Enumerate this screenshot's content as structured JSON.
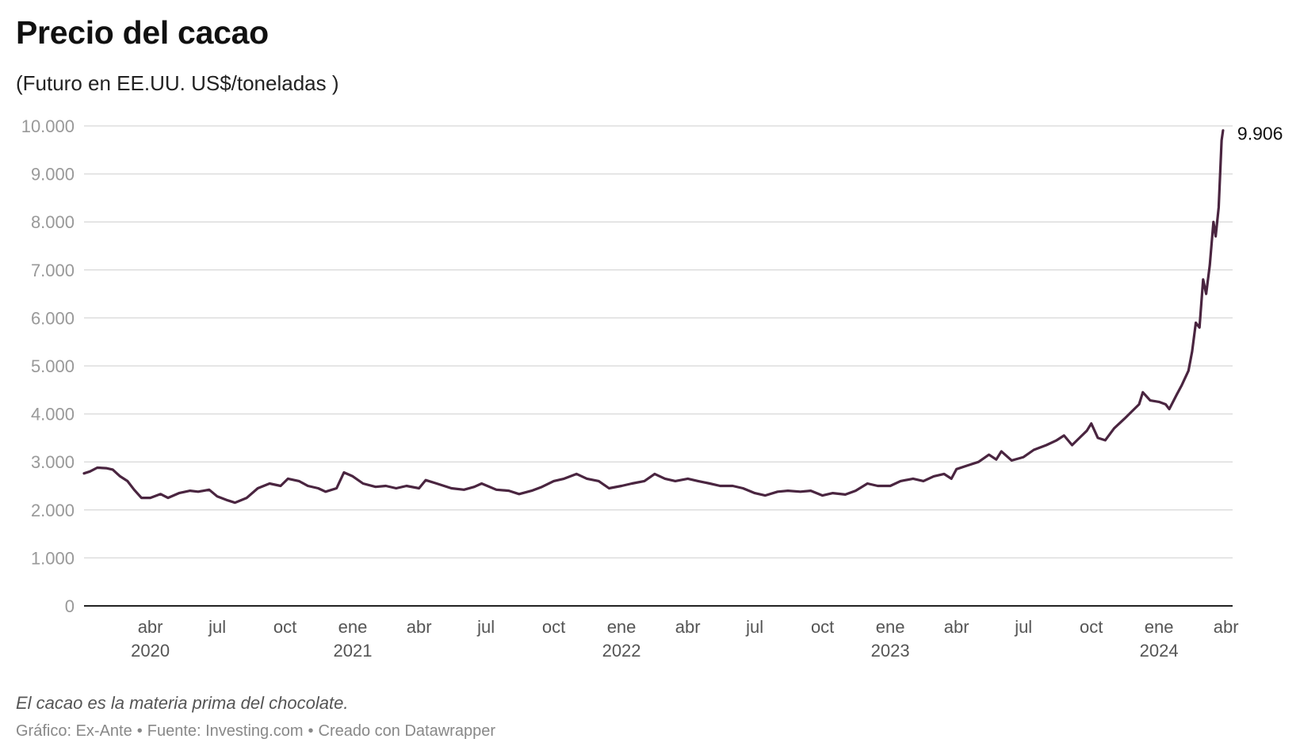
{
  "header": {
    "title": "Precio del cacao",
    "subtitle": "(Futuro en EE.UU. US$/toneladas )"
  },
  "footer": {
    "note": "El cacao es la materia prima del chocolate.",
    "credit": "Gráfico: Ex-Ante",
    "source": "Fuente: Investing.com",
    "tool": "Creado con Datawrapper"
  },
  "chart_data": {
    "type": "line",
    "title": "Precio del cacao",
    "subtitle": "(Futuro en EE.UU. US$/toneladas )",
    "xlabel": "",
    "ylabel": "",
    "ylim": [
      0,
      10000
    ],
    "xlim": [
      "2020-01-02",
      "2024-04-10"
    ],
    "grid": true,
    "line_color": "#4a2540",
    "y_ticks": [
      {
        "value": 0,
        "label": "0"
      },
      {
        "value": 1000,
        "label": "1.000"
      },
      {
        "value": 2000,
        "label": "2.000"
      },
      {
        "value": 3000,
        "label": "3.000"
      },
      {
        "value": 4000,
        "label": "4.000"
      },
      {
        "value": 5000,
        "label": "5.000"
      },
      {
        "value": 6000,
        "label": "6.000"
      },
      {
        "value": 7000,
        "label": "7.000"
      },
      {
        "value": 8000,
        "label": "8.000"
      },
      {
        "value": 9000,
        "label": "9.000"
      },
      {
        "value": 10000,
        "label": "10.000"
      }
    ],
    "x_ticks": [
      {
        "date": "2020-04-01",
        "label": "abr",
        "year": "2020"
      },
      {
        "date": "2020-07-01",
        "label": "jul",
        "year": ""
      },
      {
        "date": "2020-10-01",
        "label": "oct",
        "year": ""
      },
      {
        "date": "2021-01-01",
        "label": "ene",
        "year": "2021"
      },
      {
        "date": "2021-04-01",
        "label": "abr",
        "year": ""
      },
      {
        "date": "2021-07-01",
        "label": "jul",
        "year": ""
      },
      {
        "date": "2021-10-01",
        "label": "oct",
        "year": ""
      },
      {
        "date": "2022-01-01",
        "label": "ene",
        "year": "2022"
      },
      {
        "date": "2022-04-01",
        "label": "abr",
        "year": ""
      },
      {
        "date": "2022-07-01",
        "label": "jul",
        "year": ""
      },
      {
        "date": "2022-10-01",
        "label": "oct",
        "year": ""
      },
      {
        "date": "2023-01-01",
        "label": "ene",
        "year": "2023"
      },
      {
        "date": "2023-04-01",
        "label": "abr",
        "year": ""
      },
      {
        "date": "2023-07-01",
        "label": "jul",
        "year": ""
      },
      {
        "date": "2023-10-01",
        "label": "oct",
        "year": ""
      },
      {
        "date": "2024-01-01",
        "label": "ene",
        "year": "2024"
      },
      {
        "date": "2024-04-01",
        "label": "abr",
        "year": ""
      }
    ],
    "last_value_label": "9.906",
    "series": [
      {
        "points": [
          [
            "2020-01-02",
            2760
          ],
          [
            "2020-01-10",
            2800
          ],
          [
            "2020-01-20",
            2880
          ],
          [
            "2020-02-01",
            2870
          ],
          [
            "2020-02-10",
            2840
          ],
          [
            "2020-02-20",
            2700
          ],
          [
            "2020-03-01",
            2600
          ],
          [
            "2020-03-10",
            2420
          ],
          [
            "2020-03-20",
            2250
          ],
          [
            "2020-04-01",
            2250
          ],
          [
            "2020-04-15",
            2330
          ],
          [
            "2020-04-25",
            2250
          ],
          [
            "2020-05-10",
            2350
          ],
          [
            "2020-05-25",
            2400
          ],
          [
            "2020-06-05",
            2380
          ],
          [
            "2020-06-20",
            2420
          ],
          [
            "2020-07-01",
            2280
          ],
          [
            "2020-07-15",
            2200
          ],
          [
            "2020-07-25",
            2150
          ],
          [
            "2020-08-10",
            2250
          ],
          [
            "2020-08-25",
            2450
          ],
          [
            "2020-09-10",
            2550
          ],
          [
            "2020-09-25",
            2500
          ],
          [
            "2020-10-05",
            2650
          ],
          [
            "2020-10-20",
            2600
          ],
          [
            "2020-11-01",
            2500
          ],
          [
            "2020-11-15",
            2450
          ],
          [
            "2020-11-25",
            2380
          ],
          [
            "2020-12-10",
            2450
          ],
          [
            "2020-12-20",
            2780
          ],
          [
            "2021-01-01",
            2700
          ],
          [
            "2021-01-15",
            2550
          ],
          [
            "2021-02-01",
            2480
          ],
          [
            "2021-02-15",
            2500
          ],
          [
            "2021-03-01",
            2450
          ],
          [
            "2021-03-15",
            2500
          ],
          [
            "2021-04-01",
            2450
          ],
          [
            "2021-04-10",
            2620
          ],
          [
            "2021-04-25",
            2550
          ],
          [
            "2021-05-15",
            2450
          ],
          [
            "2021-06-01",
            2420
          ],
          [
            "2021-06-15",
            2480
          ],
          [
            "2021-06-25",
            2550
          ],
          [
            "2021-07-15",
            2420
          ],
          [
            "2021-08-01",
            2400
          ],
          [
            "2021-08-15",
            2330
          ],
          [
            "2021-09-01",
            2400
          ],
          [
            "2021-09-15",
            2480
          ],
          [
            "2021-10-01",
            2600
          ],
          [
            "2021-10-15",
            2650
          ],
          [
            "2021-11-01",
            2750
          ],
          [
            "2021-11-15",
            2650
          ],
          [
            "2021-12-01",
            2600
          ],
          [
            "2021-12-15",
            2450
          ],
          [
            "2022-01-01",
            2500
          ],
          [
            "2022-01-15",
            2550
          ],
          [
            "2022-02-01",
            2600
          ],
          [
            "2022-02-15",
            2750
          ],
          [
            "2022-03-01",
            2650
          ],
          [
            "2022-03-15",
            2600
          ],
          [
            "2022-04-01",
            2650
          ],
          [
            "2022-04-15",
            2600
          ],
          [
            "2022-05-01",
            2550
          ],
          [
            "2022-05-15",
            2500
          ],
          [
            "2022-06-01",
            2500
          ],
          [
            "2022-06-15",
            2450
          ],
          [
            "2022-07-01",
            2350
          ],
          [
            "2022-07-15",
            2300
          ],
          [
            "2022-08-01",
            2380
          ],
          [
            "2022-08-15",
            2400
          ],
          [
            "2022-09-01",
            2380
          ],
          [
            "2022-09-15",
            2400
          ],
          [
            "2022-10-01",
            2300
          ],
          [
            "2022-10-15",
            2350
          ],
          [
            "2022-11-01",
            2320
          ],
          [
            "2022-11-15",
            2400
          ],
          [
            "2022-12-01",
            2550
          ],
          [
            "2022-12-15",
            2500
          ],
          [
            "2023-01-01",
            2500
          ],
          [
            "2023-01-15",
            2600
          ],
          [
            "2023-02-01",
            2650
          ],
          [
            "2023-02-15",
            2600
          ],
          [
            "2023-03-01",
            2700
          ],
          [
            "2023-03-15",
            2750
          ],
          [
            "2023-03-25",
            2650
          ],
          [
            "2023-04-01",
            2850
          ],
          [
            "2023-04-15",
            2920
          ],
          [
            "2023-05-01",
            3000
          ],
          [
            "2023-05-15",
            3150
          ],
          [
            "2023-05-25",
            3050
          ],
          [
            "2023-06-01",
            3220
          ],
          [
            "2023-06-15",
            3030
          ],
          [
            "2023-07-01",
            3100
          ],
          [
            "2023-07-15",
            3250
          ],
          [
            "2023-08-01",
            3350
          ],
          [
            "2023-08-15",
            3450
          ],
          [
            "2023-08-25",
            3550
          ],
          [
            "2023-09-05",
            3350
          ],
          [
            "2023-09-15",
            3500
          ],
          [
            "2023-09-25",
            3650
          ],
          [
            "2023-10-01",
            3800
          ],
          [
            "2023-10-10",
            3500
          ],
          [
            "2023-10-20",
            3450
          ],
          [
            "2023-11-01",
            3700
          ],
          [
            "2023-11-15",
            3900
          ],
          [
            "2023-11-25",
            4050
          ],
          [
            "2023-12-05",
            4200
          ],
          [
            "2023-12-10",
            4450
          ],
          [
            "2023-12-20",
            4280
          ],
          [
            "2024-01-01",
            4250
          ],
          [
            "2024-01-10",
            4200
          ],
          [
            "2024-01-15",
            4100
          ],
          [
            "2024-01-25",
            4400
          ],
          [
            "2024-02-01",
            4600
          ],
          [
            "2024-02-10",
            4900
          ],
          [
            "2024-02-15",
            5300
          ],
          [
            "2024-02-20",
            5900
          ],
          [
            "2024-02-25",
            5800
          ],
          [
            "2024-03-01",
            6800
          ],
          [
            "2024-03-05",
            6500
          ],
          [
            "2024-03-10",
            7100
          ],
          [
            "2024-03-15",
            8000
          ],
          [
            "2024-03-18",
            7700
          ],
          [
            "2024-03-22",
            8300
          ],
          [
            "2024-03-26",
            9700
          ],
          [
            "2024-03-28",
            9906
          ]
        ]
      }
    ]
  }
}
